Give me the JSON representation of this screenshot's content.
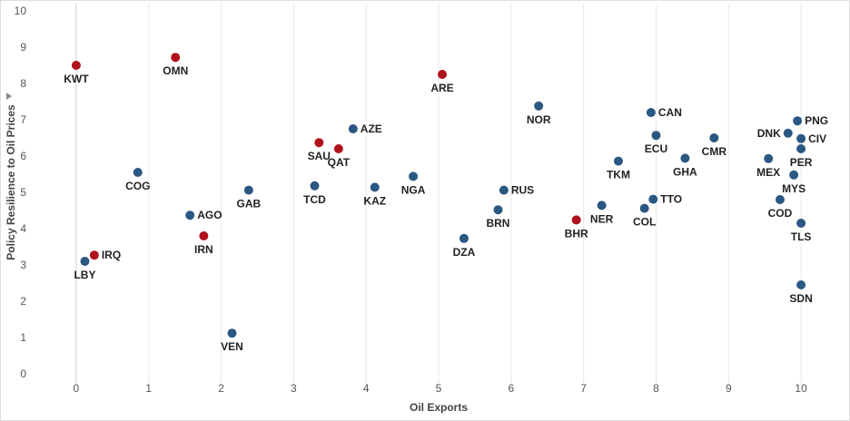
{
  "colors": {
    "blue": "#2b5783",
    "red": "#b0121b"
  },
  "chart_data": {
    "type": "scatter",
    "xlabel": "Oil Exports",
    "ylabel": "Policy Resilience to Oil Prices",
    "ylabel_icon": "sort-indicator-icon",
    "xlim": [
      -0.6,
      10.6
    ],
    "ylim": [
      -0.3,
      10.2
    ],
    "xticks": [
      0,
      1,
      2,
      3,
      4,
      5,
      6,
      7,
      8,
      9,
      10
    ],
    "yticks": [
      0,
      1,
      2,
      3,
      4,
      5,
      6,
      7,
      8,
      9,
      10
    ],
    "grid": true,
    "points": [
      {
        "label": "KWT",
        "x": 0.0,
        "y": 8.5,
        "group": "red",
        "label_pos": "below"
      },
      {
        "label": "OMN",
        "x": 1.37,
        "y": 8.72,
        "group": "red",
        "label_pos": "below"
      },
      {
        "label": "ARE",
        "x": 5.05,
        "y": 8.25,
        "group": "red",
        "label_pos": "below"
      },
      {
        "label": "SAU",
        "x": 3.35,
        "y": 6.37,
        "group": "red",
        "label_pos": "below"
      },
      {
        "label": "QAT",
        "x": 3.62,
        "y": 6.2,
        "group": "red",
        "label_pos": "below"
      },
      {
        "label": "IRN",
        "x": 1.76,
        "y": 3.8,
        "group": "red",
        "label_pos": "below"
      },
      {
        "label": "IRQ",
        "x": 0.25,
        "y": 3.27,
        "group": "red",
        "label_pos": "right"
      },
      {
        "label": "BHR",
        "x": 6.9,
        "y": 4.24,
        "group": "red",
        "label_pos": "below"
      },
      {
        "label": "LBY",
        "x": 0.12,
        "y": 3.1,
        "group": "blue",
        "label_pos": "below"
      },
      {
        "label": "COG",
        "x": 0.85,
        "y": 5.55,
        "group": "blue",
        "label_pos": "below"
      },
      {
        "label": "AGO",
        "x": 1.57,
        "y": 4.37,
        "group": "blue",
        "label_pos": "right"
      },
      {
        "label": "VEN",
        "x": 2.15,
        "y": 1.12,
        "group": "blue",
        "label_pos": "below"
      },
      {
        "label": "GAB",
        "x": 2.38,
        "y": 5.06,
        "group": "blue",
        "label_pos": "below"
      },
      {
        "label": "TCD",
        "x": 3.29,
        "y": 5.18,
        "group": "blue",
        "label_pos": "below"
      },
      {
        "label": "AZE",
        "x": 3.82,
        "y": 6.75,
        "group": "blue",
        "label_pos": "right"
      },
      {
        "label": "KAZ",
        "x": 4.12,
        "y": 5.14,
        "group": "blue",
        "label_pos": "below"
      },
      {
        "label": "NGA",
        "x": 4.65,
        "y": 5.44,
        "group": "blue",
        "label_pos": "below"
      },
      {
        "label": "DZA",
        "x": 5.35,
        "y": 3.73,
        "group": "blue",
        "label_pos": "below"
      },
      {
        "label": "BRN",
        "x": 5.82,
        "y": 4.52,
        "group": "blue",
        "label_pos": "below"
      },
      {
        "label": "RUS",
        "x": 5.9,
        "y": 5.06,
        "group": "blue",
        "label_pos": "right"
      },
      {
        "label": "NOR",
        "x": 6.38,
        "y": 7.38,
        "group": "blue",
        "label_pos": "below"
      },
      {
        "label": "NER",
        "x": 7.25,
        "y": 4.64,
        "group": "blue",
        "label_pos": "below"
      },
      {
        "label": "TKM",
        "x": 7.48,
        "y": 5.86,
        "group": "blue",
        "label_pos": "below"
      },
      {
        "label": "COL",
        "x": 7.84,
        "y": 4.56,
        "group": "blue",
        "label_pos": "below"
      },
      {
        "label": "TTO",
        "x": 7.96,
        "y": 4.81,
        "group": "blue",
        "label_pos": "right"
      },
      {
        "label": "CAN",
        "x": 7.93,
        "y": 7.2,
        "group": "blue",
        "label_pos": "right"
      },
      {
        "label": "ECU",
        "x": 8.0,
        "y": 6.57,
        "group": "blue",
        "label_pos": "below"
      },
      {
        "label": "GHA",
        "x": 8.4,
        "y": 5.94,
        "group": "blue",
        "label_pos": "below"
      },
      {
        "label": "CMR",
        "x": 8.8,
        "y": 6.5,
        "group": "blue",
        "label_pos": "below"
      },
      {
        "label": "MEX",
        "x": 9.55,
        "y": 5.93,
        "group": "blue",
        "label_pos": "below"
      },
      {
        "label": "DNK",
        "x": 9.82,
        "y": 6.63,
        "group": "blue",
        "label_pos": "left"
      },
      {
        "label": "PNG",
        "x": 9.95,
        "y": 6.97,
        "group": "blue",
        "label_pos": "right"
      },
      {
        "label": "CIV",
        "x": 10.0,
        "y": 6.48,
        "group": "blue",
        "label_pos": "right"
      },
      {
        "label": "PER",
        "x": 10.0,
        "y": 6.2,
        "group": "blue",
        "label_pos": "below"
      },
      {
        "label": "MYS",
        "x": 9.9,
        "y": 5.48,
        "group": "blue",
        "label_pos": "below"
      },
      {
        "label": "COD",
        "x": 9.71,
        "y": 4.8,
        "group": "blue",
        "label_pos": "below"
      },
      {
        "label": "TLS",
        "x": 10.0,
        "y": 4.15,
        "group": "blue",
        "label_pos": "below"
      },
      {
        "label": "SDN",
        "x": 10.0,
        "y": 2.45,
        "group": "blue",
        "label_pos": "below"
      }
    ]
  }
}
